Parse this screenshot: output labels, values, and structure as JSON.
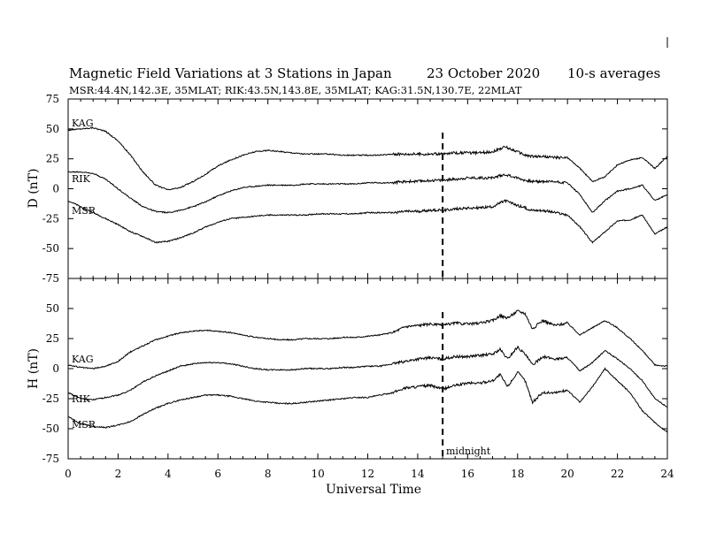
{
  "chart_data": [
    {
      "type": "line",
      "title": "Magnetic Field Variations at 3 Stations in Japan",
      "date": "23 October 2020",
      "averaging": "10-s averages",
      "subtitle": "MSR:44.4N,142.3E, 35MLAT;  RIK:43.5N,143.8E, 35MLAT;  KAG:31.5N,130.7E, 22MLAT",
      "xlabel": "Universal Time",
      "x_ticks": [
        0,
        2,
        4,
        6,
        8,
        10,
        12,
        14,
        16,
        18,
        20,
        22,
        24
      ],
      "xlim": [
        0,
        24
      ],
      "ylabel": "D (nT)",
      "ylim": [
        -75,
        75
      ],
      "y_ticks": [
        -75,
        -50,
        -25,
        0,
        25,
        50,
        75
      ],
      "grid": false,
      "annotation": {
        "type": "vline",
        "x": 15,
        "style": "dashed"
      },
      "series": [
        {
          "name": "KAG",
          "x": [
            0,
            0.5,
            1,
            1.5,
            2,
            2.5,
            3,
            3.5,
            4,
            4.5,
            5,
            5.5,
            6,
            6.5,
            7,
            7.5,
            8,
            8.5,
            9,
            9.5,
            10,
            10.5,
            11,
            11.5,
            12,
            12.5,
            13,
            13.5,
            14,
            14.5,
            15,
            15.5,
            16,
            16.5,
            17,
            17.5,
            18,
            18.3,
            18.6,
            19,
            19.5,
            20,
            20.5,
            21,
            21.5,
            22,
            22.5,
            23,
            23.5,
            24
          ],
          "values": [
            49,
            50,
            51,
            48,
            40,
            28,
            14,
            3,
            -1,
            1,
            6,
            12,
            19,
            24,
            28,
            31,
            32,
            31,
            30,
            29,
            29,
            29,
            28,
            28,
            28,
            28,
            29,
            29,
            29,
            29,
            29,
            30,
            30,
            30,
            31,
            35,
            31,
            28,
            27,
            27,
            26,
            26,
            17,
            6,
            10,
            20,
            24,
            26,
            17,
            27
          ]
        },
        {
          "name": "RIK",
          "x": [
            0,
            0.5,
            1,
            1.5,
            2,
            2.5,
            3,
            3.5,
            4,
            4.5,
            5,
            5.5,
            6,
            6.5,
            7,
            7.5,
            8,
            8.5,
            9,
            9.5,
            10,
            10.5,
            11,
            11.5,
            12,
            12.5,
            13,
            13.5,
            14,
            14.5,
            15,
            15.5,
            16,
            16.5,
            17,
            17.5,
            18,
            18.3,
            18.6,
            19,
            19.5,
            20,
            20.5,
            21,
            21.5,
            22,
            22.5,
            23,
            23.5,
            24
          ],
          "values": [
            14,
            14,
            13,
            8,
            0,
            -8,
            -15,
            -19,
            -20,
            -18,
            -15,
            -11,
            -6,
            -2,
            1,
            2,
            3,
            3,
            3,
            4,
            4,
            4,
            4,
            4,
            5,
            5,
            5,
            6,
            6,
            7,
            7,
            8,
            9,
            9,
            9,
            12,
            9,
            7,
            6,
            6,
            6,
            5,
            -5,
            -20,
            -10,
            -2,
            0,
            3,
            -10,
            -5
          ]
        },
        {
          "name": "MSR",
          "x": [
            0,
            0.5,
            1,
            1.5,
            2,
            2.5,
            3,
            3.5,
            4,
            4.5,
            5,
            5.5,
            6,
            6.5,
            7,
            7.5,
            8,
            8.5,
            9,
            9.5,
            10,
            10.5,
            11,
            11.5,
            12,
            12.5,
            13,
            13.5,
            14,
            14.5,
            15,
            15.5,
            16,
            16.5,
            17,
            17.5,
            18,
            18.3,
            18.6,
            19,
            19.5,
            20,
            20.5,
            21,
            21.5,
            22,
            22.5,
            23,
            23.5,
            24
          ],
          "values": [
            -10,
            -15,
            -20,
            -25,
            -30,
            -36,
            -40,
            -45,
            -44,
            -41,
            -37,
            -32,
            -28,
            -25,
            -24,
            -23,
            -22,
            -22,
            -22,
            -22,
            -21,
            -21,
            -21,
            -21,
            -20,
            -20,
            -20,
            -19,
            -19,
            -18,
            -18,
            -17,
            -16,
            -16,
            -15,
            -10,
            -14,
            -16,
            -18,
            -18,
            -20,
            -22,
            -32,
            -45,
            -36,
            -27,
            -26,
            -22,
            -38,
            -32
          ]
        }
      ]
    },
    {
      "type": "line",
      "xlabel": "Universal Time",
      "x_ticks": [
        0,
        2,
        4,
        6,
        8,
        10,
        12,
        14,
        16,
        18,
        20,
        22,
        24
      ],
      "xlim": [
        0,
        24
      ],
      "ylabel": "H (nT)",
      "ylim": [
        -75,
        75
      ],
      "y_ticks": [
        -75,
        -50,
        -25,
        0,
        25,
        50
      ],
      "grid": false,
      "annotation": {
        "type": "vline",
        "x": 15,
        "style": "dashed",
        "label": "midnight"
      },
      "series": [
        {
          "name": "KAG",
          "x": [
            0,
            0.5,
            1,
            1.5,
            2,
            2.5,
            3,
            3.5,
            4,
            4.5,
            5,
            5.5,
            6,
            6.5,
            7,
            7.5,
            8,
            8.5,
            9,
            9.5,
            10,
            10.5,
            11,
            11.5,
            12,
            12.5,
            13,
            13.5,
            14,
            14.5,
            15,
            15.5,
            16,
            16.5,
            17,
            17.3,
            17.6,
            18,
            18.3,
            18.6,
            19,
            19.5,
            20,
            20.5,
            21,
            21.5,
            22,
            22.5,
            23,
            23.5,
            24
          ],
          "values": [
            3,
            1,
            0,
            2,
            6,
            14,
            19,
            24,
            27,
            30,
            31,
            32,
            31,
            30,
            28,
            26,
            25,
            24,
            24,
            25,
            25,
            25,
            26,
            26,
            27,
            28,
            30,
            35,
            36,
            37,
            36,
            38,
            37,
            38,
            40,
            44,
            42,
            48,
            46,
            33,
            40,
            36,
            38,
            28,
            34,
            40,
            34,
            25,
            15,
            3,
            2
          ]
        },
        {
          "name": "RIK",
          "x": [
            0,
            0.5,
            1,
            1.5,
            2,
            2.5,
            3,
            3.5,
            4,
            4.5,
            5,
            5.5,
            6,
            6.5,
            7,
            7.5,
            8,
            8.5,
            9,
            9.5,
            10,
            10.5,
            11,
            11.5,
            12,
            12.5,
            13,
            13.5,
            14,
            14.5,
            15,
            15.5,
            16,
            16.5,
            17,
            17.3,
            17.6,
            18,
            18.3,
            18.6,
            19,
            19.5,
            20,
            20.5,
            21,
            21.5,
            22,
            22.5,
            23,
            23.5,
            24
          ],
          "values": [
            -20,
            -25,
            -26,
            -24,
            -22,
            -18,
            -11,
            -6,
            -2,
            2,
            4,
            5,
            5,
            4,
            2,
            0,
            -1,
            -1,
            -1,
            0,
            0,
            0,
            1,
            1,
            2,
            2,
            4,
            6,
            8,
            9,
            8,
            10,
            10,
            11,
            12,
            16,
            8,
            18,
            12,
            3,
            10,
            8,
            9,
            -2,
            5,
            15,
            8,
            0,
            -10,
            -25,
            -32
          ]
        },
        {
          "name": "MSR",
          "x": [
            0,
            0.5,
            1,
            1.5,
            2,
            2.5,
            3,
            3.5,
            4,
            4.5,
            5,
            5.5,
            6,
            6.5,
            7,
            7.5,
            8,
            8.5,
            9,
            9.5,
            10,
            10.5,
            11,
            11.5,
            12,
            12.5,
            13,
            13.5,
            14,
            14.5,
            15,
            15.5,
            16,
            16.5,
            17,
            17.3,
            17.6,
            18,
            18.3,
            18.6,
            19,
            19.5,
            20,
            20.5,
            21,
            21.5,
            22,
            22.5,
            23,
            23.5,
            24
          ],
          "values": [
            -40,
            -46,
            -48,
            -49,
            -47,
            -44,
            -38,
            -33,
            -29,
            -26,
            -24,
            -22,
            -22,
            -23,
            -25,
            -27,
            -28,
            -29,
            -29,
            -28,
            -27,
            -26,
            -25,
            -24,
            -24,
            -22,
            -20,
            -16,
            -15,
            -14,
            -17,
            -14,
            -12,
            -12,
            -10,
            -5,
            -15,
            -3,
            -10,
            -28,
            -20,
            -20,
            -18,
            -28,
            -15,
            0,
            -10,
            -20,
            -35,
            -45,
            -53
          ]
        }
      ]
    }
  ],
  "labels": {
    "title": "Magnetic Field Variations at 3 Stations in Japan",
    "date": "23 October 2020",
    "averaging": "10-s averages",
    "subtitle": "MSR:44.4N,142.3E, 35MLAT;  RIK:43.5N,143.8E, 35MLAT;  KAG:31.5N,130.7E, 22MLAT",
    "xlabel": "Universal Time",
    "d_ylabel": "D (nT)",
    "h_ylabel": "H (nT)",
    "midnight": "midnight",
    "d_station_labels": [
      "KAG",
      "RIK",
      "MSR"
    ],
    "h_station_labels": [
      "KAG",
      "RIK",
      "MSR"
    ]
  }
}
